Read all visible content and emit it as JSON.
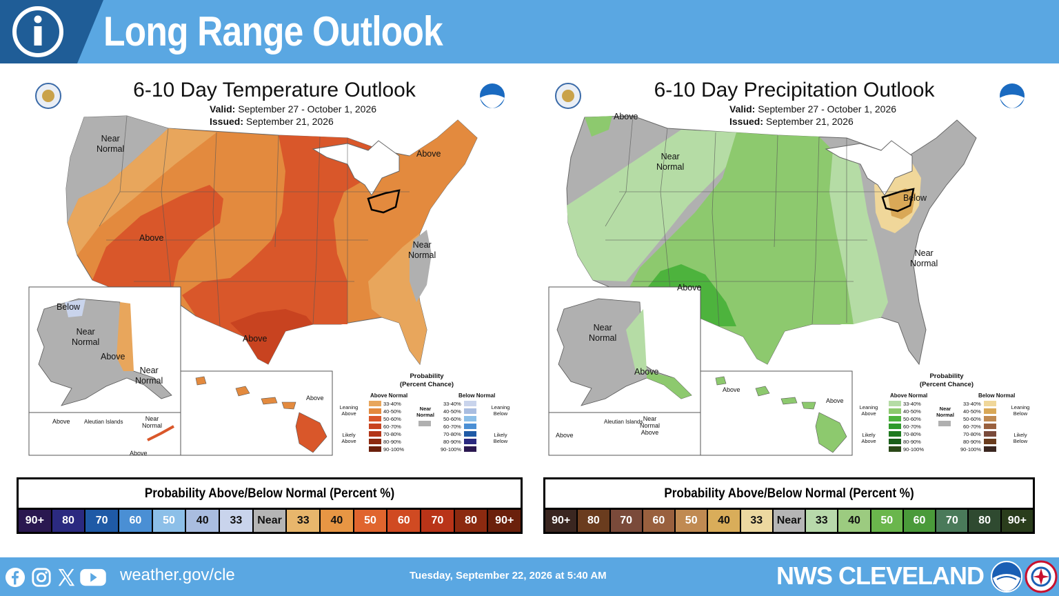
{
  "header": {
    "title": "Long Range Outlook",
    "info_icon": "info-icon"
  },
  "colors": {
    "header_bg": "#5aa7e2",
    "temp_above_leaning": "#e8a65c",
    "temp_above_40_50": "#e38a3e",
    "temp_above_50_60": "#d9572a",
    "temp_above_60_70": "#c84320",
    "near_normal": "#b0b0b0",
    "precip_above_33_40": "#b5dca5",
    "precip_above_40_50": "#8dc96e",
    "precip_above_50_60": "#4db33d",
    "precip_below_33_40": "#f0d79a",
    "precip_below_40_50": "#d9a857"
  },
  "temperature_map": {
    "title": "6-10 Day Temperature Outlook",
    "valid_label": "Valid:",
    "valid_value": "September 27 - October 1, 2026",
    "issued_label": "Issued:",
    "issued_value": "September 21, 2026",
    "labels": {
      "nw_near": "Near",
      "nw_normal": "Normal",
      "ne_above": "Above",
      "sw_above": "Above",
      "se_near": "Near",
      "se_normal": "Normal",
      "tx_above": "Above",
      "ak_below": "Below",
      "ak_near": "Near",
      "ak_normal": "Normal",
      "ak_above": "Above",
      "ak_se_near": "Near",
      "ak_se_normal": "Normal",
      "aleut_above": "Above",
      "aleut_islands": "Aleutian Islands",
      "aleut_near": "Near",
      "aleut_normal": "Normal",
      "aleut_above2": "Above",
      "hi_above": "Above"
    }
  },
  "precipitation_map": {
    "title": "6-10 Day Precipitation Outlook",
    "valid_label": "Valid:",
    "valid_value": "September 27 - October 1, 2026",
    "issued_label": "Issued:",
    "issued_value": "September 21, 2026",
    "labels": {
      "wa_above": "Above",
      "nw_near": "Near",
      "nw_normal": "Normal",
      "oh_below": "Below",
      "e_near": "Near",
      "e_normal": "Normal",
      "sw_above": "Above",
      "ak_near": "Near",
      "ak_normal": "Normal",
      "ak_above": "Above",
      "aleut_islands": "Aleutian Islands",
      "aleut_near": "Near",
      "aleut_normal": "Normal",
      "aleut_above": "Above",
      "aleut_above_w": "Above",
      "hi_above_w": "Above",
      "hi_above_e": "Above"
    }
  },
  "probability_legend": {
    "title_line1": "Probability",
    "title_line2": "(Percent Chance)",
    "above_head": "Above Normal",
    "below_head": "Below Normal",
    "near_line1": "Near",
    "near_line2": "Normal",
    "leaning_above_1": "Leaning",
    "leaning_above_2": "Above",
    "likely_above_1": "Likely",
    "likely_above_2": "Above",
    "leaning_below_1": "Leaning",
    "leaning_below_2": "Below",
    "likely_below_1": "Likely",
    "likely_below_2": "Below",
    "ranges": [
      "33-40%",
      "40-50%",
      "50-60%",
      "60-70%",
      "70-80%",
      "80-90%",
      "90-100%"
    ]
  },
  "temp_bar": {
    "title": "Probability Above/Below Normal (Percent %)",
    "cells": [
      {
        "label": "90+",
        "bg": "#2a1850",
        "fg": "#ffffff"
      },
      {
        "label": "80",
        "bg": "#2b2a80",
        "fg": "#ffffff"
      },
      {
        "label": "70",
        "bg": "#1f5aa6",
        "fg": "#ffffff"
      },
      {
        "label": "60",
        "bg": "#4a8fd4",
        "fg": "#ffffff"
      },
      {
        "label": "50",
        "bg": "#8cbfe8",
        "fg": "#ffffff"
      },
      {
        "label": "40",
        "bg": "#a9bde0",
        "fg": "#111111"
      },
      {
        "label": "33",
        "bg": "#c9d4ec",
        "fg": "#111111"
      },
      {
        "label": "Near",
        "bg": "#b5b5b5",
        "fg": "#111111"
      },
      {
        "label": "33",
        "bg": "#e8b66c",
        "fg": "#111111"
      },
      {
        "label": "40",
        "bg": "#e79644",
        "fg": "#111111"
      },
      {
        "label": "50",
        "bg": "#e0652e",
        "fg": "#ffffff"
      },
      {
        "label": "60",
        "bg": "#d04a22",
        "fg": "#ffffff"
      },
      {
        "label": "70",
        "bg": "#b93418",
        "fg": "#ffffff"
      },
      {
        "label": "80",
        "bg": "#8c2a10",
        "fg": "#ffffff"
      },
      {
        "label": "90+",
        "bg": "#6b200c",
        "fg": "#ffffff"
      }
    ]
  },
  "precip_bar": {
    "title": "Probability Above/Below Normal (Percent %)",
    "cells": [
      {
        "label": "90+",
        "bg": "#3a2620",
        "fg": "#ffffff"
      },
      {
        "label": "80",
        "bg": "#6a3c1e",
        "fg": "#ffffff"
      },
      {
        "label": "70",
        "bg": "#7a4a3a",
        "fg": "#ffffff"
      },
      {
        "label": "60",
        "bg": "#99603e",
        "fg": "#ffffff"
      },
      {
        "label": "50",
        "bg": "#c08a52",
        "fg": "#ffffff"
      },
      {
        "label": "40",
        "bg": "#d9ad5a",
        "fg": "#111111"
      },
      {
        "label": "33",
        "bg": "#ecd8a0",
        "fg": "#111111"
      },
      {
        "label": "Near",
        "bg": "#b5b5b5",
        "fg": "#111111"
      },
      {
        "label": "33",
        "bg": "#b8d9ab",
        "fg": "#111111"
      },
      {
        "label": "40",
        "bg": "#9ccb80",
        "fg": "#111111"
      },
      {
        "label": "50",
        "bg": "#6ab64c",
        "fg": "#ffffff"
      },
      {
        "label": "60",
        "bg": "#4a9a3a",
        "fg": "#ffffff"
      },
      {
        "label": "70",
        "bg": "#4a7a5a",
        "fg": "#ffffff"
      },
      {
        "label": "80",
        "bg": "#2f4a30",
        "fg": "#ffffff"
      },
      {
        "label": "90+",
        "bg": "#2a3d1c",
        "fg": "#ffffff"
      }
    ]
  },
  "footer": {
    "social_icons": [
      "facebook-icon",
      "instagram-icon",
      "x-icon",
      "youtube-icon"
    ],
    "website": "weather.gov/cle",
    "timestamp": "Tuesday, September 22, 2026 at 5:40 AM",
    "office": "NWS CLEVELAND"
  }
}
